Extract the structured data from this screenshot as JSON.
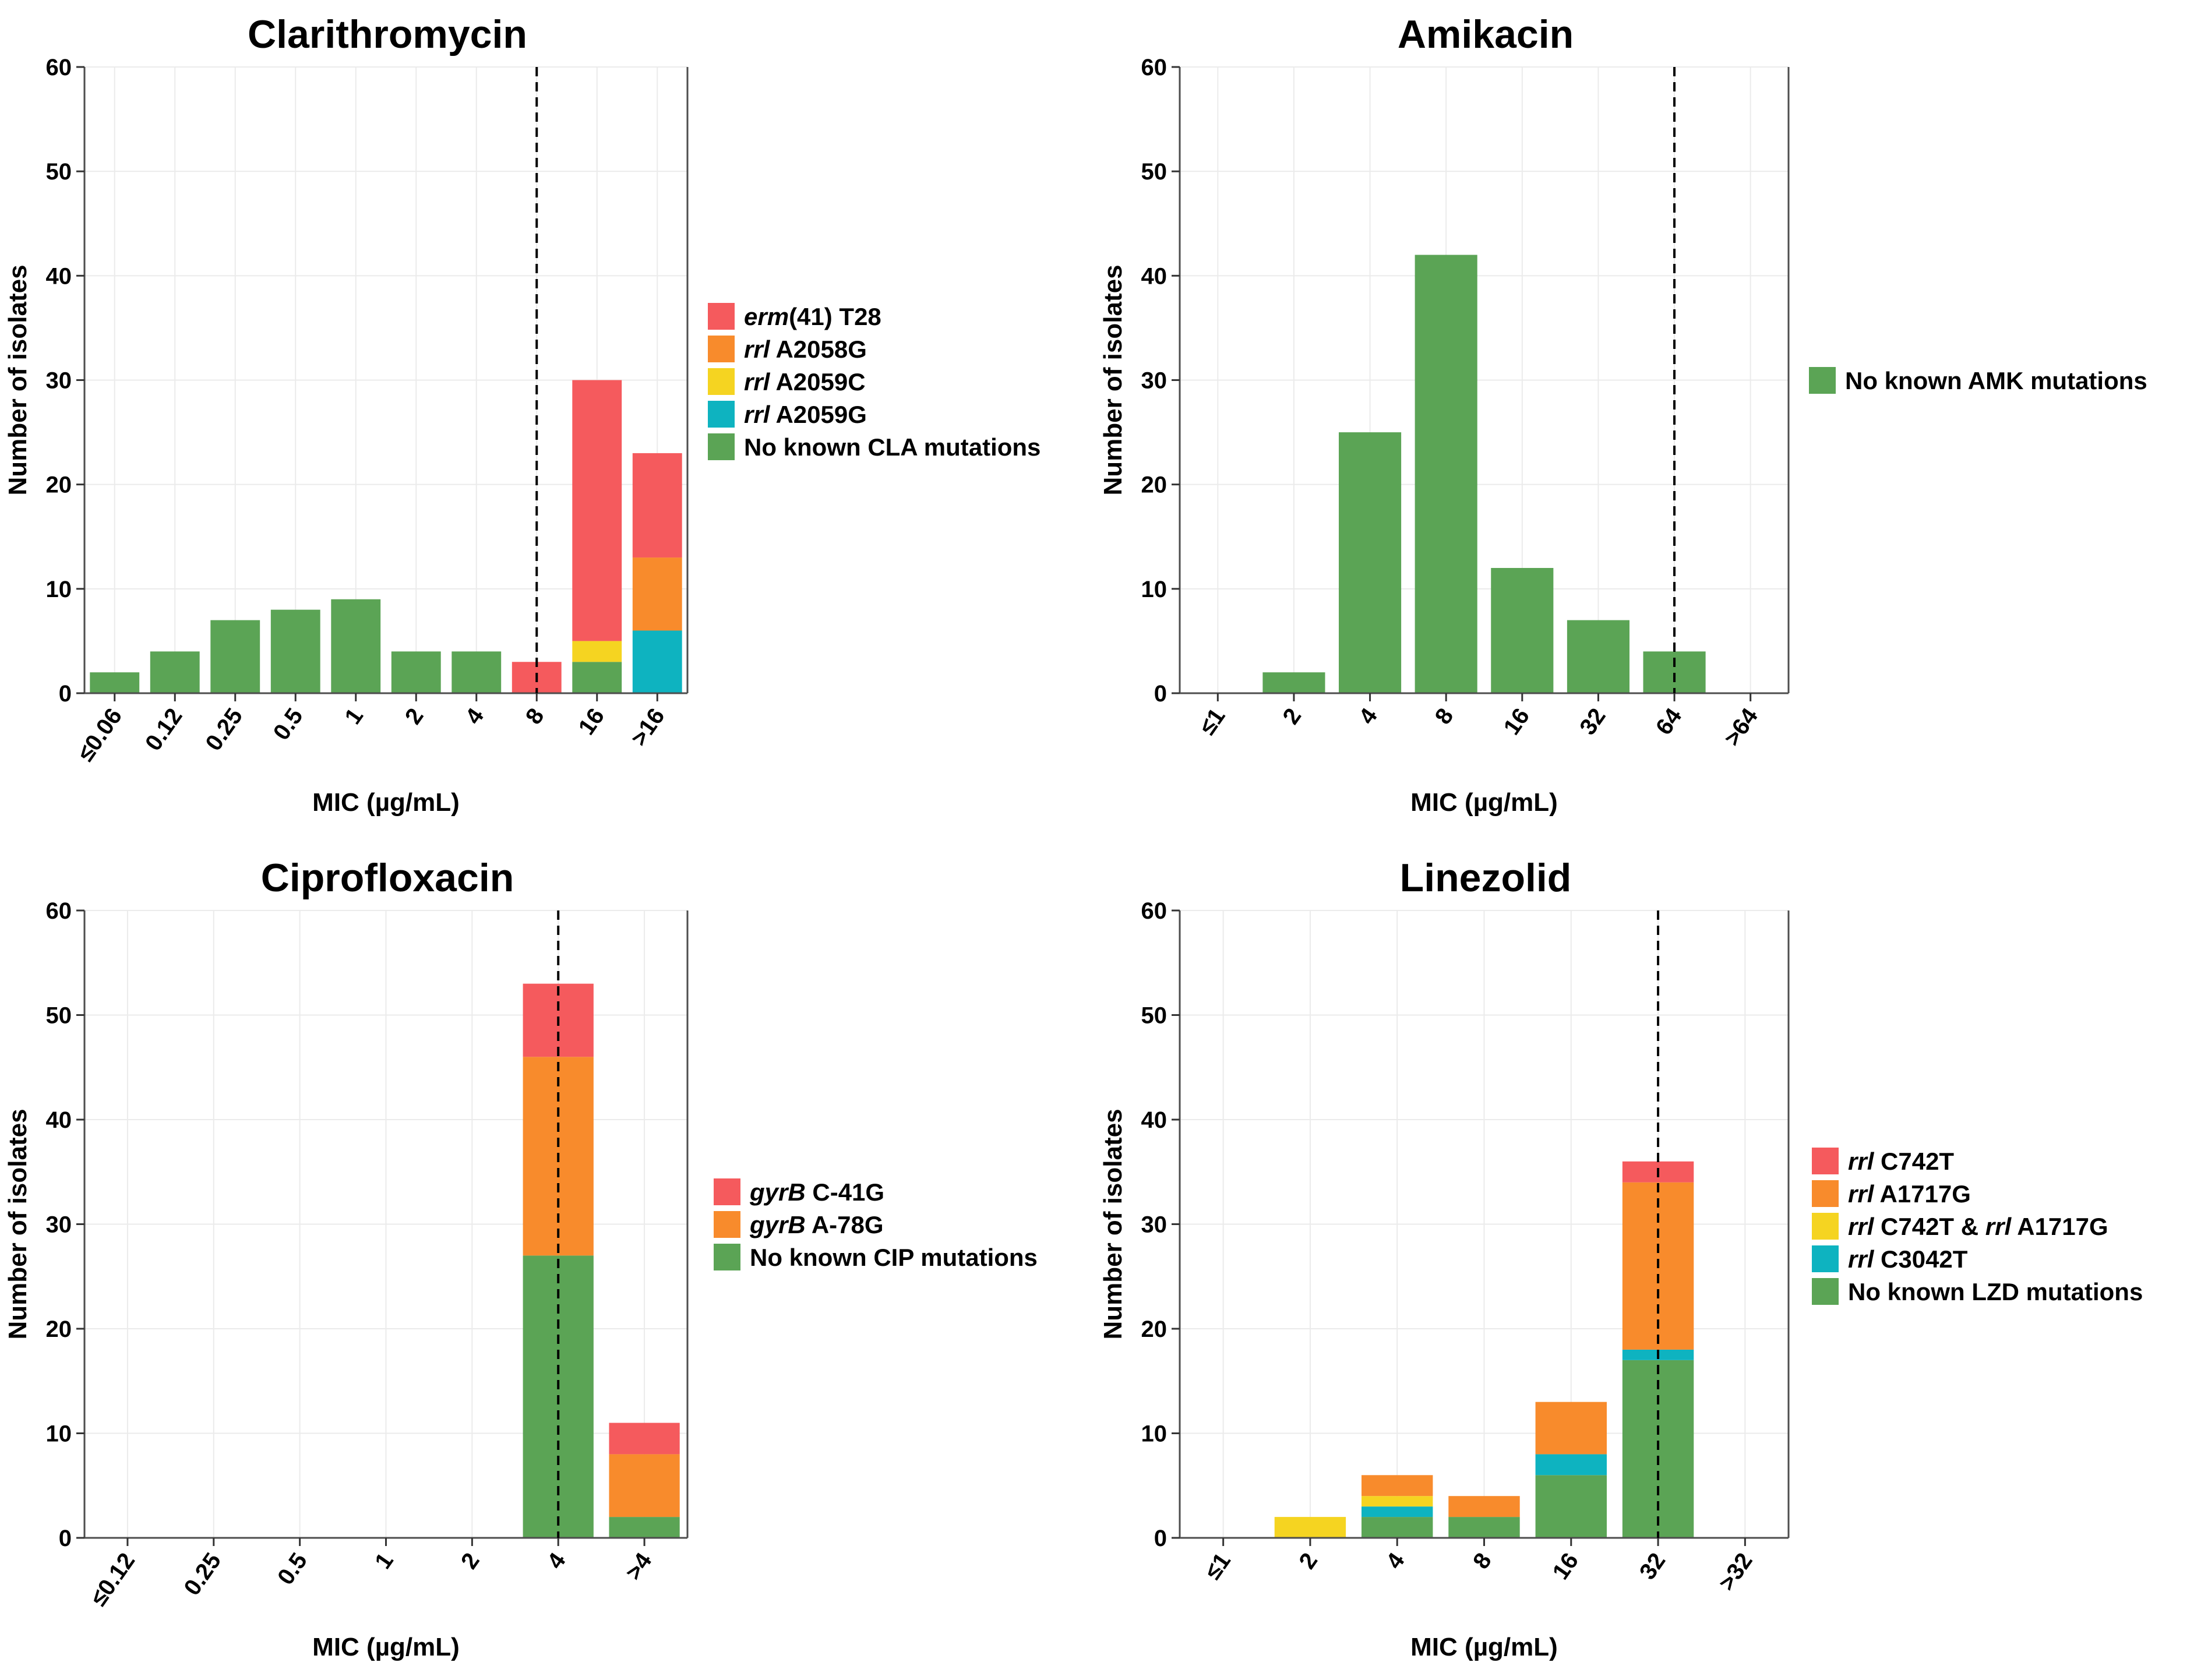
{
  "chart_data": [
    {
      "type": "bar",
      "stacked": true,
      "title": "Clarithromycin",
      "xlabel": "MIC (µg/mL)",
      "ylabel": "Number of isolates",
      "ylim": [
        0,
        60
      ],
      "yticks": [
        0,
        10,
        20,
        30,
        40,
        50,
        60
      ],
      "grid": true,
      "breakpoint_category": "8",
      "categories": [
        "≤0.06",
        "0.12",
        "0.25",
        "0.5",
        "1",
        "2",
        "4",
        "8",
        "16",
        ">16"
      ],
      "series": [
        {
          "name": "No known CLA mutations",
          "label_parts": [
            {
              "text": "No known CLA mutations",
              "italic": false
            }
          ],
          "color": "#5ba455",
          "values": [
            2,
            4,
            7,
            8,
            9,
            4,
            4,
            0,
            3,
            0
          ]
        },
        {
          "name": "rrl A2059G",
          "label_parts": [
            {
              "text": "rrl",
              "italic": true
            },
            {
              "text": " A2059G",
              "italic": false
            }
          ],
          "color": "#0eb3c0",
          "values": [
            0,
            0,
            0,
            0,
            0,
            0,
            0,
            0,
            0,
            6
          ]
        },
        {
          "name": "rrl A2059C",
          "label_parts": [
            {
              "text": "rrl",
              "italic": true
            },
            {
              "text": " A2059C",
              "italic": false
            }
          ],
          "color": "#f5d421",
          "values": [
            0,
            0,
            0,
            0,
            0,
            0,
            0,
            0,
            2,
            0
          ]
        },
        {
          "name": "rrl A2058G",
          "label_parts": [
            {
              "text": "rrl",
              "italic": true
            },
            {
              "text": " A2058G",
              "italic": false
            }
          ],
          "color": "#f88b2c",
          "values": [
            0,
            0,
            0,
            0,
            0,
            0,
            0,
            0,
            0,
            7
          ]
        },
        {
          "name": "erm(41) T28",
          "label_parts": [
            {
              "text": "erm",
              "italic": true
            },
            {
              "text": "(41) T28",
              "italic": false
            }
          ],
          "color": "#f55a5d",
          "values": [
            0,
            0,
            0,
            0,
            0,
            0,
            0,
            3,
            25,
            10
          ]
        }
      ]
    },
    {
      "type": "bar",
      "stacked": true,
      "title": "Amikacin",
      "xlabel": "MIC (µg/mL)",
      "ylabel": "Number of isolates",
      "ylim": [
        0,
        60
      ],
      "yticks": [
        0,
        10,
        20,
        30,
        40,
        50,
        60
      ],
      "grid": true,
      "breakpoint_category": "64",
      "categories": [
        "≤1",
        "2",
        "4",
        "8",
        "16",
        "32",
        "64",
        ">64"
      ],
      "series": [
        {
          "name": "No known AMK mutations",
          "label_parts": [
            {
              "text": "No known AMK mutations",
              "italic": false
            }
          ],
          "color": "#5ba455",
          "values": [
            0,
            2,
            25,
            42,
            12,
            7,
            4,
            0
          ]
        }
      ]
    },
    {
      "type": "bar",
      "stacked": true,
      "title": "Ciprofloxacin",
      "xlabel": "MIC (µg/mL)",
      "ylabel": "Number of isolates",
      "ylim": [
        0,
        60
      ],
      "yticks": [
        0,
        10,
        20,
        30,
        40,
        50,
        60
      ],
      "grid": true,
      "breakpoint_category": "4",
      "categories": [
        "≤0.12",
        "0.25",
        "0.5",
        "1",
        "2",
        "4",
        ">4"
      ],
      "series": [
        {
          "name": "No known CIP mutations",
          "label_parts": [
            {
              "text": "No known CIP mutations",
              "italic": false
            }
          ],
          "color": "#5ba455",
          "values": [
            0,
            0,
            0,
            0,
            0,
            27,
            2
          ]
        },
        {
          "name": "gyrB A-78G",
          "label_parts": [
            {
              "text": "gyrB",
              "italic": true
            },
            {
              "text": " A-78G",
              "italic": false
            }
          ],
          "color": "#f88b2c",
          "values": [
            0,
            0,
            0,
            0,
            0,
            19,
            6
          ]
        },
        {
          "name": "gyrB C-41G",
          "label_parts": [
            {
              "text": "gyrB",
              "italic": true
            },
            {
              "text": " C-41G",
              "italic": false
            }
          ],
          "color": "#f55a5d",
          "values": [
            0,
            0,
            0,
            0,
            0,
            7,
            3
          ]
        }
      ]
    },
    {
      "type": "bar",
      "stacked": true,
      "title": "Linezolid",
      "xlabel": "MIC (µg/mL)",
      "ylabel": "Number of isolates",
      "ylim": [
        0,
        60
      ],
      "yticks": [
        0,
        10,
        20,
        30,
        40,
        50,
        60
      ],
      "grid": true,
      "breakpoint_category": "32",
      "categories": [
        "≤1",
        "2",
        "4",
        "8",
        "16",
        "32",
        ">32"
      ],
      "series": [
        {
          "name": "No known LZD mutations",
          "label_parts": [
            {
              "text": "No known LZD mutations",
              "italic": false
            }
          ],
          "color": "#5ba455",
          "values": [
            0,
            0,
            2,
            2,
            6,
            17,
            0
          ]
        },
        {
          "name": "rrl C3042T",
          "label_parts": [
            {
              "text": "rrl",
              "italic": true
            },
            {
              "text": " C3042T",
              "italic": false
            }
          ],
          "color": "#0eb3c0",
          "values": [
            0,
            0,
            1,
            0,
            2,
            1,
            0
          ]
        },
        {
          "name": "rrl C742T & rrl A1717G",
          "label_parts": [
            {
              "text": "rrl",
              "italic": true
            },
            {
              "text": " C742T & ",
              "italic": false
            },
            {
              "text": "rrl",
              "italic": true
            },
            {
              "text": " A1717G",
              "italic": false
            }
          ],
          "color": "#f5d421",
          "values": [
            0,
            2,
            1,
            0,
            0,
            0,
            0
          ]
        },
        {
          "name": "rrl A1717G",
          "label_parts": [
            {
              "text": "rrl",
              "italic": true
            },
            {
              "text": " A1717G",
              "italic": false
            }
          ],
          "color": "#f88b2c",
          "values": [
            0,
            0,
            2,
            2,
            5,
            16,
            0
          ]
        },
        {
          "name": "rrl C742T",
          "label_parts": [
            {
              "text": "rrl",
              "italic": true
            },
            {
              "text": " C742T",
              "italic": false
            }
          ],
          "color": "#f55a5d",
          "values": [
            0,
            0,
            0,
            0,
            0,
            2,
            0
          ]
        }
      ]
    }
  ]
}
